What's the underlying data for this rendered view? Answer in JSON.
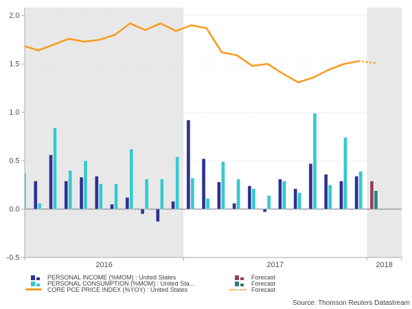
{
  "chart_data": {
    "type": "bar+line",
    "months": [
      "2016-02",
      "2016-03",
      "2016-04",
      "2016-05",
      "2016-06",
      "2016-07",
      "2016-08",
      "2016-09",
      "2016-10",
      "2016-11",
      "2016-12",
      "2017-01",
      "2017-02",
      "2017-03",
      "2017-04",
      "2017-05",
      "2017-06",
      "2017-07",
      "2017-08",
      "2017-09",
      "2017-10",
      "2017-11",
      "2017-12",
      "2018-01"
    ],
    "series": [
      {
        "name": "PERSONAL INCOME (%MOM) : United States",
        "type": "bar",
        "color_key": "income",
        "values": [
          null,
          0.29,
          0.56,
          0.29,
          0.33,
          0.34,
          0.05,
          0.12,
          -0.05,
          -0.13,
          0.08,
          0.92,
          0.52,
          0.28,
          0.06,
          0.24,
          -0.03,
          0.31,
          0.21,
          0.47,
          0.36,
          0.29,
          0.34,
          0.29
        ]
      },
      {
        "name": "PERSONAL CONSUMPTION (%MOM) : United Sta...",
        "type": "bar",
        "color_key": "consumption",
        "values": [
          0.37,
          0.06,
          0.84,
          0.4,
          0.5,
          0.26,
          0.26,
          0.62,
          0.31,
          0.31,
          0.54,
          0.32,
          0.11,
          0.49,
          0.31,
          0.21,
          0.14,
          0.29,
          0.17,
          0.99,
          0.25,
          0.74,
          0.39,
          0.19
        ]
      },
      {
        "name": "CORE PCE PRICE INDEX (%YOY) : United States",
        "type": "line",
        "color_key": "core_pce",
        "values": [
          1.69,
          1.64,
          1.7,
          1.76,
          1.73,
          1.75,
          1.8,
          1.92,
          1.85,
          1.92,
          1.84,
          1.9,
          1.87,
          1.62,
          1.59,
          1.48,
          1.5,
          1.4,
          1.31,
          1.36,
          1.44,
          1.5,
          1.53,
          1.51
        ]
      }
    ],
    "forecast": {
      "months_count": 1,
      "label": "Forecast",
      "income_color_key": "forecast_income",
      "consumption_color_key": "forecast_consumption",
      "line_style": "dotted"
    },
    "ylim": [
      -0.5,
      2.08
    ],
    "yticks": [
      2.0,
      1.5,
      1.0,
      0.5,
      0.0,
      -0.5
    ],
    "ytick_labels": [
      "2.0",
      "1.5",
      "1.0",
      "0.5",
      "0.0",
      "-0.5"
    ],
    "x_axis_year_labels": [
      "2016",
      "2017",
      "2018"
    ],
    "legend_position": "bottom",
    "grid": "dotted-horizontal"
  },
  "colors": {
    "income": "#2E3192",
    "consumption": "#35C8CE",
    "core_pce": "#F89C1E",
    "forecast_income": "#993A5C",
    "forecast_consumption": "#2A7F78",
    "band_gray": "#E8E8E8",
    "axis": "#A9A9A9",
    "zero_line": "#999999",
    "grid": "#D9D9D9",
    "text": "#4D4D4D"
  },
  "source": "Source: Thomson Reuters Datastream"
}
